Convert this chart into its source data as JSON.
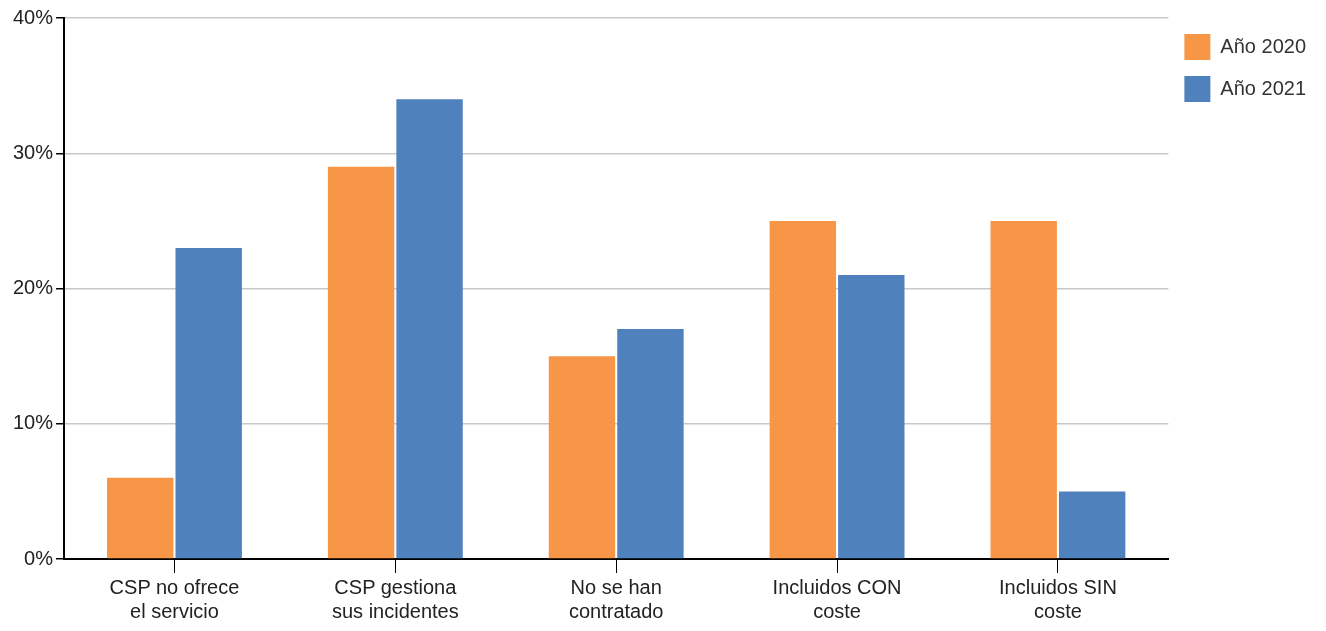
{
  "chart_data": {
    "type": "bar",
    "categories": [
      "CSP no ofrece el servicio",
      "CSP gestiona sus incidentes",
      "No se han contratado",
      "Incluidos CON coste",
      "Incluidos SIN coste"
    ],
    "series": [
      {
        "name": "Año 2020",
        "color": "#f79646",
        "values": [
          6,
          29,
          15,
          25,
          25
        ]
      },
      {
        "name": "Año 2021",
        "color": "#4f81bd",
        "values": [
          23,
          34,
          17,
          21,
          5
        ]
      }
    ],
    "ylim": [
      0,
      40
    ],
    "yticks": [
      {
        "value": 0,
        "label": "0%"
      },
      {
        "value": 10,
        "label": "10%"
      },
      {
        "value": 20,
        "label": "20%"
      },
      {
        "value": 30,
        "label": "30%"
      },
      {
        "value": 40,
        "label": "40%"
      }
    ],
    "grid": "y",
    "legend": "top right"
  }
}
